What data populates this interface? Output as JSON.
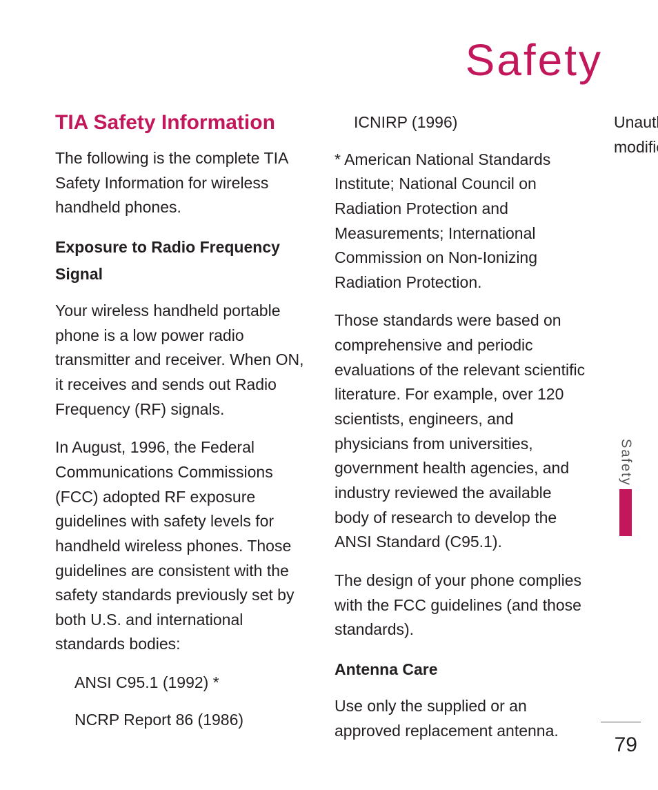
{
  "colors": {
    "accent": "#c2185b",
    "text": "#231f20",
    "side_label": "#555555",
    "background": "#ffffff",
    "rule": "#555555"
  },
  "typography": {
    "title_fontsize": 64,
    "section_fontsize": 30,
    "body_fontsize": 23,
    "subheading_fontsize": 23,
    "pagenum_fontsize": 30,
    "sidelabel_fontsize": 20,
    "title_letter_spacing": 3
  },
  "page": {
    "title": "Safety",
    "side_label": "Safety",
    "number": "79"
  },
  "content": {
    "section_heading": "TIA Safety Information",
    "intro": "The following is the complete TIA Safety Information for wireless handheld phones.",
    "sub1_heading": "Exposure to Radio Frequency Signal",
    "sub1_p1": "Your wireless handheld portable phone is a low power radio transmitter and receiver. When ON, it receives and sends out Radio Frequency (RF) signals.",
    "sub1_p2": "In August, 1996, the Federal Communications Commissions (FCC) adopted RF exposure guidelines with safety levels for handheld wireless phones. Those guidelines are consistent with the safety standards previously set by both U.S. and international standards bodies:",
    "bullets": {
      "b1": "ANSI C95.1 (1992) *",
      "b2": "NCRP Report 86 (1986)",
      "b3": "ICNIRP (1996)"
    },
    "sub1_p3": "* American National Standards Institute; National Council on Radiation Protection and Measurements; International Commission on Non-Ionizing Radiation Protection.",
    "sub1_p4": "Those standards were based on comprehensive and periodic evaluations of the relevant scientific literature. For example, over 120 scientists, engineers, and physicians from universities, government health agencies, and industry reviewed the available body of research to develop the ANSI Standard (C95.1).",
    "sub1_p5": "The design of your phone complies with the FCC guidelines (and those standards).",
    "sub2_heading": "Antenna Care",
    "sub2_p1": "Use only the supplied or an approved replacement antenna. Unauthorized antennas, modifications, or attachments"
  }
}
